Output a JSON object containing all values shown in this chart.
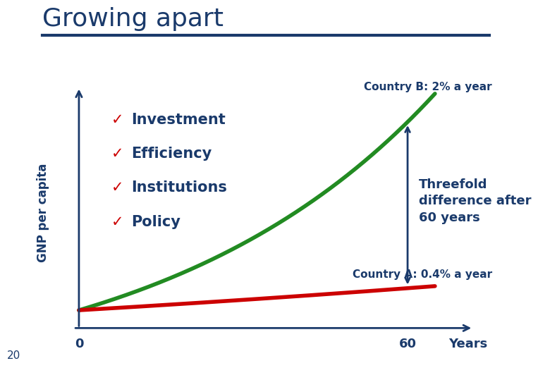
{
  "title": "Growing apart",
  "title_color": "#1a3a6b",
  "title_fontsize": 26,
  "background_color": "#ffffff",
  "ylabel": "GNP per capita",
  "country_b_label": "Country B: 2% a year",
  "country_a_label": "Country A: 0.4% a year",
  "country_b_rate": 0.02,
  "country_a_rate": 0.004,
  "color_b": "#228B22",
  "color_a": "#cc0000",
  "checklist": [
    {
      "check": "✓",
      "text": "Investment"
    },
    {
      "check": "✓",
      "text": "Efficiency"
    },
    {
      "check": "✓",
      "text": "Institutions"
    },
    {
      "check": "✓",
      "text": "Policy"
    }
  ],
  "threefold_text": "Threefold\ndifference after\n60 years",
  "note": "20",
  "title_line_color": "#1a3a6b",
  "dark_blue": "#1a3a6b",
  "check_color": "#cc0000",
  "line_lw": 4,
  "axis_lw": 2
}
